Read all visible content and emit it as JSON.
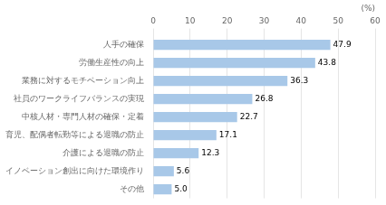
{
  "chart_data": {
    "type": "bar",
    "orientation": "horizontal",
    "categories": [
      "その他",
      "イノベーション創出に向けた環境作り",
      "介護による退職の防止",
      "育児、配偶者転勤等による退職の防止",
      "中核人材・専門人材の確保・定着",
      "社員のワークライフバランスの実現",
      "業務に対するモチベーション向上",
      "労働生産性の向上",
      "人手の確保"
    ],
    "values": [
      5.0,
      5.6,
      12.3,
      17.1,
      22.7,
      26.8,
      36.3,
      43.8,
      47.9
    ],
    "value_labels": [
      "5.0",
      "5.6",
      "12.3",
      "17.1",
      "22.7",
      "26.8",
      "36.3",
      "43.8",
      "47.9"
    ],
    "color": "#a8c8e8",
    "xlim": [
      0,
      60
    ],
    "xticks": [
      0,
      10,
      20,
      30,
      40,
      50,
      60
    ],
    "xlabel": "(%)",
    "grid": true,
    "data_labels": true
  }
}
